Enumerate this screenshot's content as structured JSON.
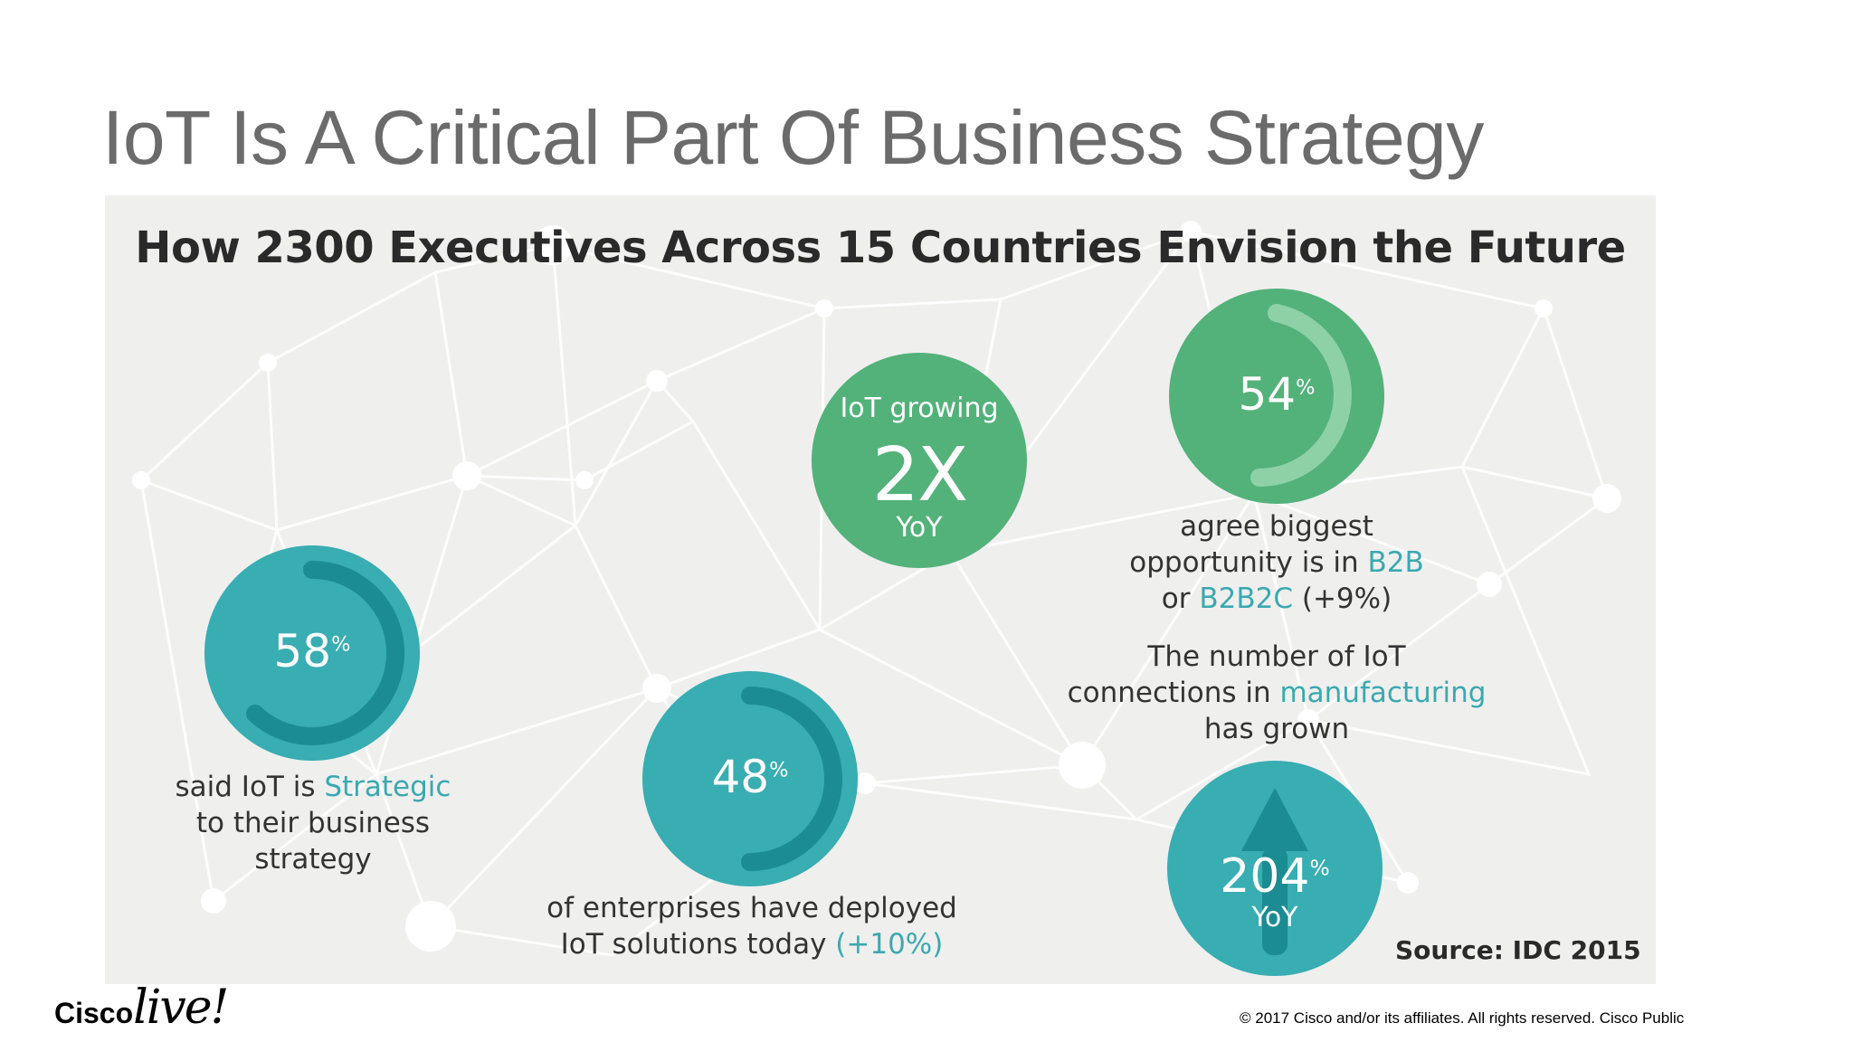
{
  "slide": {
    "title": "IoT Is A Critical Part Of Business Strategy"
  },
  "infographic": {
    "heading": "How 2300 Executives Across 15 Countries Envision the Future",
    "stats": {
      "strategic": {
        "value": "58",
        "unit": "%",
        "caption_pre": "said IoT is ",
        "caption_highlight": "Strategic",
        "caption_line2": "to their business",
        "caption_line3": "strategy"
      },
      "deployed": {
        "value": "48",
        "unit": "%",
        "caption_line1": "of enterprises have deployed",
        "caption_line2_pre": "IoT solutions today ",
        "caption_line2_highlight": "(+10%)"
      },
      "growing": {
        "top": "IoT growing",
        "value": "2X",
        "bottom": "YoY"
      },
      "b2b": {
        "value": "54",
        "unit": "%",
        "caption_line1": "agree biggest",
        "caption_line2_pre": "opportunity is in ",
        "caption_line2_highlight": "B2B",
        "caption_line3_pre": "or ",
        "caption_line3_highlight": "B2B2C",
        "caption_line3_post": " (+9%)"
      },
      "manufacturing": {
        "caption_line1": "The number of IoT",
        "caption_line2_pre": "connections in ",
        "caption_line2_highlight": "manufacturing",
        "caption_line3": "has grown",
        "value": "204",
        "unit": "%",
        "bottom": "YoY"
      }
    },
    "source": "Source: IDC 2015"
  },
  "footer": {
    "logo_cisco": "Cisco",
    "logo_live": "live!",
    "copyright": "© 2017  Cisco and/or its affiliates. All rights reserved.   Cisco Public"
  },
  "colors": {
    "teal": "#38adb2",
    "teal_dark": "#1b8c92",
    "green": "#53b27a",
    "green_light": "#8fd1a6",
    "highlight": "#3aa9b0"
  }
}
